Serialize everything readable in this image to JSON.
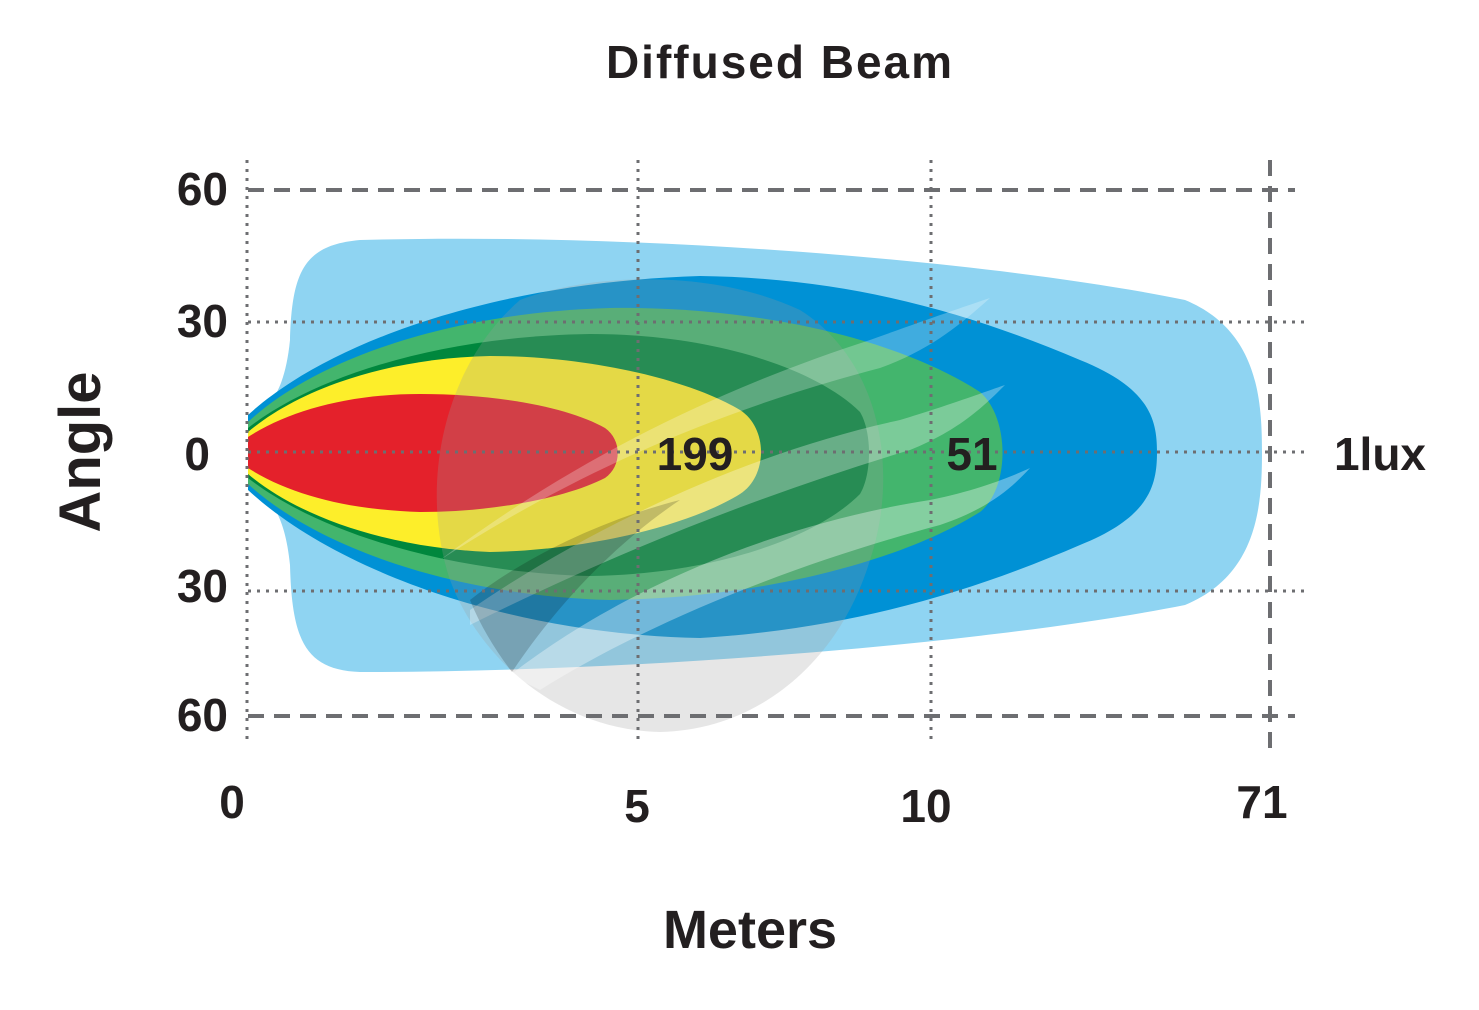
{
  "chart_data": {
    "type": "area",
    "title": "Diffused Beam",
    "xlabel": "Meters",
    "ylabel": "Angle",
    "x_ticks": [
      "0",
      "5",
      "10",
      "71"
    ],
    "y_ticks": [
      "60",
      "30",
      "0",
      "30",
      "60"
    ],
    "beam_labels": [
      {
        "text": "199",
        "x": 5.2,
        "y": 0
      },
      {
        "text": "51",
        "x": 10.2,
        "y": 0
      },
      {
        "text": "1lux",
        "x": 71,
        "y": 0
      }
    ],
    "zones": [
      {
        "color": "#8fd4f2",
        "reach_m": 71
      },
      {
        "color": "#0091d5",
        "reach_m": 13.5
      },
      {
        "color": "#43b56d",
        "reach_m": 10.9
      },
      {
        "color": "#00873d",
        "reach_m": 8.6
      },
      {
        "color": "#fdee2a",
        "reach_m": 6.9
      },
      {
        "color": "#e4212b",
        "reach_m": 4.7
      }
    ],
    "grid": true
  }
}
